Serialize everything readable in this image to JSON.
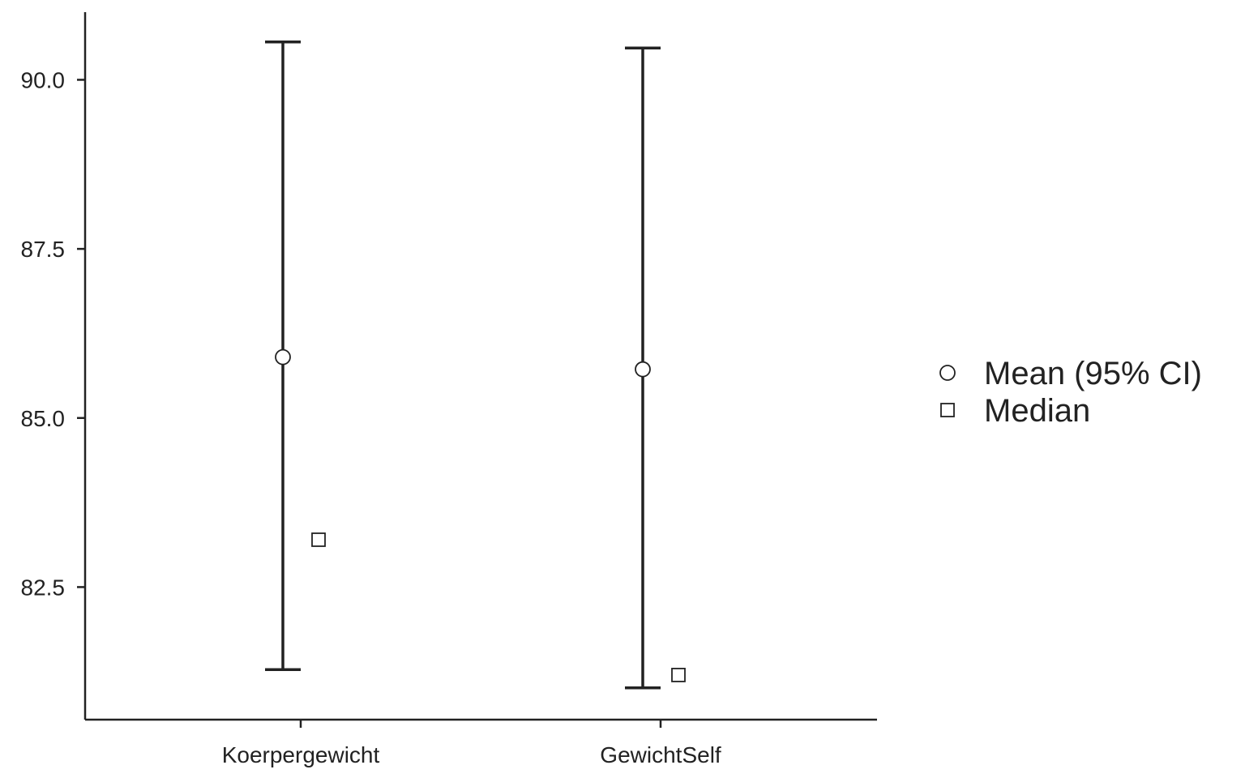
{
  "chart_data": {
    "type": "errorbar",
    "categories": [
      "Koerpergewicht",
      "GewichtSelf"
    ],
    "series": [
      {
        "name": "Mean (95% CI)",
        "marker": "circle",
        "values": [
          85.9,
          85.72
        ],
        "ci_lower": [
          81.28,
          81.01
        ],
        "ci_upper": [
          90.56,
          90.47
        ]
      },
      {
        "name": "Median",
        "marker": "square",
        "values": [
          83.2,
          81.2
        ]
      }
    ],
    "yticks": [
      82.5,
      85.0,
      87.5,
      90.0
    ],
    "ytick_labels": [
      "82.5",
      "85.0",
      "87.5",
      "90.0"
    ],
    "ylim": [
      80.54,
      91.0
    ],
    "xlabel": "",
    "ylabel": "",
    "title": "",
    "grid": false,
    "legend_position": "right"
  },
  "colors": {
    "ink": "#222222",
    "marker_fill": "#ffffff"
  }
}
